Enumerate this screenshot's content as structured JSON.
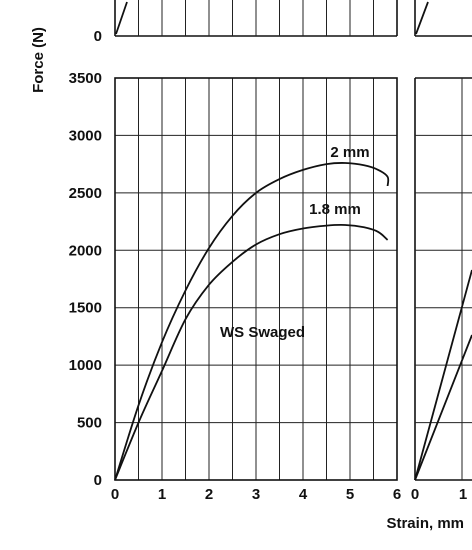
{
  "chart_data": {
    "type": "line",
    "title": "",
    "ylabel": "Force (N)",
    "xlabel": "Strain, mm",
    "x_ticks": [
      "0",
      "1",
      "2",
      "3",
      "4",
      "5",
      "6"
    ],
    "y_ticks": [
      "0",
      "500",
      "1000",
      "1500",
      "2000",
      "2500",
      "3000",
      "3500"
    ],
    "adjacent_x_ticks": [
      "0",
      "1"
    ],
    "top_panel_y_tick": "0",
    "xlim": [
      0,
      6
    ],
    "ylim": [
      0,
      3500
    ],
    "grid": true,
    "annotation": "WS Swaged",
    "series": [
      {
        "name": "2 mm",
        "x": [
          0,
          0.5,
          1.0,
          1.5,
          2.0,
          2.5,
          3.0,
          3.5,
          4.0,
          4.5,
          4.9,
          5.3,
          5.6,
          5.8,
          5.8
        ],
        "y": [
          0,
          650,
          1200,
          1650,
          2020,
          2300,
          2500,
          2620,
          2700,
          2750,
          2760,
          2740,
          2700,
          2640,
          2560
        ]
      },
      {
        "name": "1.8 mm",
        "x": [
          0,
          0.5,
          1.0,
          1.5,
          2.0,
          2.5,
          3.0,
          3.5,
          4.0,
          4.5,
          4.9,
          5.3,
          5.6,
          5.8
        ],
        "y": [
          0,
          500,
          950,
          1400,
          1700,
          1900,
          2050,
          2140,
          2190,
          2215,
          2220,
          2200,
          2160,
          2090
        ]
      }
    ]
  }
}
